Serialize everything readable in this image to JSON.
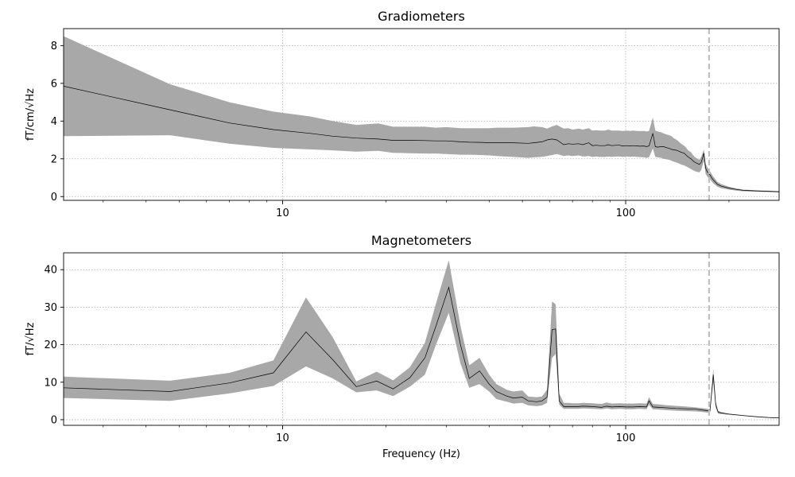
{
  "chart_data": [
    {
      "type": "area",
      "title": "Gradiometers",
      "ylabel": "fT/cm/√Hz",
      "xlabel": "",
      "xscale": "log",
      "xlim": [
        2.3,
        280
      ],
      "ylim": [
        -0.2,
        8.9
      ],
      "grid": true,
      "xticks": [
        10,
        100
      ],
      "xtick_labels": [
        "10",
        "100"
      ],
      "yticks": [
        0,
        2,
        4,
        6,
        8
      ],
      "ytick_labels": [
        "0",
        "2",
        "4",
        "6",
        "8"
      ],
      "vline_x": 175,
      "x": [
        2.3,
        4.7,
        7,
        9.4,
        12,
        14,
        16.4,
        19,
        21,
        23.5,
        26,
        28,
        30,
        33,
        35,
        38,
        40,
        42,
        47,
        52,
        54,
        57,
        59,
        61,
        63,
        66,
        68,
        70,
        73,
        75,
        78,
        80,
        82,
        84,
        87,
        89,
        91,
        94,
        96,
        98,
        101,
        103,
        105,
        108,
        110,
        113,
        115,
        117,
        120,
        122,
        124,
        127,
        129,
        131,
        134,
        136,
        138,
        141,
        143,
        145,
        148,
        150,
        152,
        155,
        157,
        159,
        162,
        164,
        166,
        169,
        171,
        173,
        176,
        178,
        180,
        183,
        185,
        190,
        200,
        210,
        220,
        240,
        260,
        280
      ],
      "mean": [
        5.85,
        4.6,
        3.9,
        3.55,
        3.35,
        3.2,
        3.1,
        3.05,
        2.98,
        2.98,
        2.97,
        2.95,
        2.95,
        2.9,
        2.88,
        2.87,
        2.85,
        2.85,
        2.85,
        2.82,
        2.85,
        2.9,
        3.0,
        3.05,
        3.0,
        2.75,
        2.8,
        2.78,
        2.8,
        2.75,
        2.85,
        2.7,
        2.72,
        2.7,
        2.7,
        2.75,
        2.7,
        2.72,
        2.72,
        2.68,
        2.7,
        2.68,
        2.7,
        2.68,
        2.67,
        2.68,
        2.65,
        2.68,
        3.35,
        2.65,
        2.62,
        2.65,
        2.65,
        2.6,
        2.55,
        2.5,
        2.48,
        2.45,
        2.4,
        2.35,
        2.3,
        2.2,
        2.1,
        2.0,
        1.9,
        1.82,
        1.75,
        1.7,
        1.8,
        2.3,
        1.5,
        1.3,
        1.15,
        1.0,
        0.88,
        0.75,
        0.65,
        0.55,
        0.45,
        0.38,
        0.33,
        0.3,
        0.28,
        0.26
      ],
      "upper": [
        8.5,
        5.95,
        5.0,
        4.5,
        4.25,
        4.0,
        3.8,
        3.88,
        3.7,
        3.7,
        3.7,
        3.65,
        3.68,
        3.62,
        3.62,
        3.62,
        3.62,
        3.65,
        3.65,
        3.68,
        3.72,
        3.68,
        3.6,
        3.72,
        3.8,
        3.6,
        3.62,
        3.55,
        3.6,
        3.55,
        3.62,
        3.5,
        3.52,
        3.5,
        3.5,
        3.55,
        3.5,
        3.5,
        3.5,
        3.48,
        3.5,
        3.48,
        3.5,
        3.48,
        3.47,
        3.48,
        3.45,
        3.48,
        4.2,
        3.5,
        3.45,
        3.4,
        3.35,
        3.3,
        3.25,
        3.2,
        3.1,
        3.0,
        2.9,
        2.8,
        2.7,
        2.6,
        2.45,
        2.35,
        2.2,
        2.1,
        2.0,
        1.95,
        2.1,
        2.5,
        1.75,
        1.55,
        1.35,
        1.2,
        1.05,
        0.9,
        0.78,
        0.66,
        0.52,
        0.43,
        0.37,
        0.33,
        0.31,
        0.28
      ],
      "lower": [
        3.2,
        3.25,
        2.8,
        2.58,
        2.5,
        2.45,
        2.38,
        2.42,
        2.32,
        2.3,
        2.28,
        2.28,
        2.25,
        2.22,
        2.22,
        2.2,
        2.18,
        2.15,
        2.1,
        2.05,
        2.08,
        2.1,
        2.15,
        2.2,
        2.25,
        2.15,
        2.18,
        2.15,
        2.18,
        2.12,
        2.15,
        2.1,
        2.12,
        2.1,
        2.1,
        2.12,
        2.1,
        2.12,
        2.12,
        2.1,
        2.12,
        2.1,
        2.12,
        2.1,
        2.09,
        2.08,
        2.05,
        2.08,
        2.55,
        2.1,
        2.08,
        2.05,
        2.0,
        1.98,
        1.95,
        1.9,
        1.85,
        1.8,
        1.75,
        1.7,
        1.65,
        1.6,
        1.55,
        1.45,
        1.4,
        1.35,
        1.3,
        1.28,
        1.4,
        1.9,
        1.2,
        1.05,
        0.92,
        0.8,
        0.7,
        0.6,
        0.52,
        0.44,
        0.37,
        0.32,
        0.28,
        0.26,
        0.24,
        0.22
      ]
    },
    {
      "type": "area",
      "title": "Magnetometers",
      "ylabel": "fT/√Hz",
      "xlabel": "Frequency (Hz)",
      "xscale": "log",
      "xlim": [
        2.3,
        280
      ],
      "ylim": [
        -1.5,
        44.5
      ],
      "grid": true,
      "xticks": [
        10,
        100
      ],
      "xtick_labels": [
        "10",
        "100"
      ],
      "yticks": [
        0,
        10,
        20,
        30,
        40
      ],
      "ytick_labels": [
        "0",
        "10",
        "20",
        "30",
        "40"
      ],
      "vline_x": 175,
      "x": [
        2.3,
        4.7,
        7,
        9.4,
        11.7,
        14,
        16.4,
        18.8,
        21,
        23.5,
        26,
        28,
        30.5,
        33,
        35,
        37.5,
        40,
        42,
        45,
        47,
        50,
        52,
        55,
        57,
        59,
        61,
        62.5,
        64,
        66,
        68,
        70,
        73,
        75,
        80,
        85,
        88,
        91,
        96,
        100,
        105,
        110,
        115,
        117,
        120,
        125,
        130,
        140,
        150,
        160,
        170,
        176,
        180,
        183,
        186,
        190,
        200,
        220,
        240,
        260,
        280
      ],
      "mean": [
        8.5,
        7.5,
        9.8,
        12.5,
        23.4,
        16.0,
        8.8,
        10.3,
        8.2,
        11.2,
        16.5,
        25.0,
        35.3,
        20.0,
        11.0,
        13.0,
        9.5,
        7.5,
        6.3,
        5.8,
        6.0,
        5.0,
        4.8,
        5.0,
        6.0,
        24.0,
        24.2,
        5.0,
        3.5,
        3.5,
        3.5,
        3.5,
        3.6,
        3.5,
        3.3,
        3.6,
        3.4,
        3.5,
        3.4,
        3.4,
        3.5,
        3.4,
        5.0,
        3.4,
        3.3,
        3.2,
        3.0,
        2.9,
        2.8,
        2.5,
        2.3,
        12.0,
        4.0,
        2.0,
        1.8,
        1.5,
        1.1,
        0.8,
        0.6,
        0.5
      ],
      "upper": [
        11.5,
        10.4,
        12.5,
        15.8,
        32.6,
        22.0,
        10.2,
        12.8,
        10.5,
        14.0,
        20.5,
        31.0,
        42.5,
        25.0,
        14.5,
        16.5,
        12.0,
        9.5,
        8.0,
        7.5,
        7.8,
        6.2,
        6.0,
        6.2,
        8.0,
        31.5,
        30.8,
        7.0,
        4.5,
        4.5,
        4.4,
        4.4,
        4.5,
        4.4,
        4.2,
        4.6,
        4.3,
        4.4,
        4.3,
        4.3,
        4.4,
        4.3,
        6.0,
        4.2,
        4.1,
        3.9,
        3.7,
        3.5,
        3.3,
        3.0,
        2.8,
        13.5,
        4.8,
        2.4,
        2.0,
        1.6,
        1.2,
        0.9,
        0.65,
        0.5
      ],
      "lower": [
        5.8,
        5.0,
        7.0,
        9.0,
        14.2,
        11.0,
        7.3,
        7.8,
        6.3,
        8.8,
        12.0,
        20.0,
        28.5,
        15.0,
        8.5,
        9.5,
        7.5,
        5.5,
        4.8,
        4.3,
        4.5,
        3.8,
        3.6,
        3.8,
        4.5,
        16.5,
        17.5,
        4.0,
        2.9,
        2.9,
        2.9,
        2.9,
        3.0,
        2.9,
        2.8,
        3.0,
        2.8,
        2.9,
        2.8,
        2.8,
        2.9,
        2.8,
        4.0,
        2.8,
        2.7,
        2.6,
        2.4,
        2.3,
        2.2,
        2.0,
        1.8,
        10.0,
        3.2,
        1.6,
        1.5,
        1.3,
        1.0,
        0.7,
        0.5,
        0.4
      ]
    }
  ]
}
